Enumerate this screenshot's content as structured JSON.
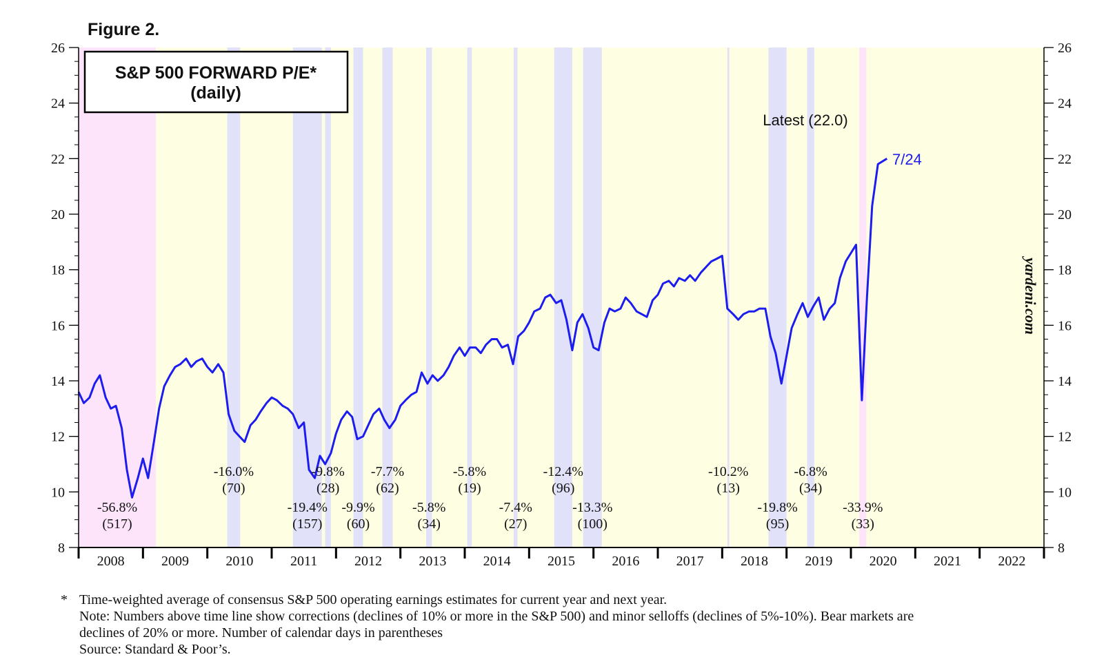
{
  "figure_label": "Figure 2.",
  "chart_data": {
    "type": "line",
    "title": "S&P 500 FORWARD P/E*",
    "subtitle": "(daily)",
    "watermark": "yardeni.com",
    "latest_label": "Latest (22.0)",
    "date_label": "7/24",
    "xlim": [
      2008,
      2023
    ],
    "xticks": [
      {
        "value": 2008.5,
        "label": "2008"
      },
      {
        "value": 2009.5,
        "label": "2009"
      },
      {
        "value": 2010.5,
        "label": "2010"
      },
      {
        "value": 2011.5,
        "label": "2011"
      },
      {
        "value": 2012.5,
        "label": "2012"
      },
      {
        "value": 2013.5,
        "label": "2013"
      },
      {
        "value": 2014.5,
        "label": "2014"
      },
      {
        "value": 2015.5,
        "label": "2015"
      },
      {
        "value": 2016.5,
        "label": "2016"
      },
      {
        "value": 2017.5,
        "label": "2017"
      },
      {
        "value": 2018.5,
        "label": "2018"
      },
      {
        "value": 2019.5,
        "label": "2019"
      },
      {
        "value": 2020.5,
        "label": "2020"
      },
      {
        "value": 2021.5,
        "label": "2021"
      },
      {
        "value": 2022.5,
        "label": "2022"
      }
    ],
    "ylim": [
      8,
      26
    ],
    "yticks": [
      8,
      10,
      12,
      14,
      16,
      18,
      20,
      22,
      24,
      26
    ],
    "y2lim": [
      8,
      26
    ],
    "y2ticks": [
      8,
      10,
      12,
      14,
      16,
      18,
      20,
      22,
      24,
      26
    ],
    "background_color": "#fefee2",
    "periods": [
      {
        "start": 2008.0,
        "end": 2009.2,
        "color": "#fde4fa",
        "label": "-56.8%",
        "days": "(517)"
      },
      {
        "start": 2010.31,
        "end": 2010.51,
        "color": "#e1e1fa",
        "label": "-16.0%",
        "days": "(70)"
      },
      {
        "start": 2011.33,
        "end": 2011.78,
        "color": "#e1e1fa",
        "label": "-19.4%",
        "days": "(157)"
      },
      {
        "start": 2011.83,
        "end": 2011.92,
        "color": "#e1e1fa",
        "label": "-9.8%",
        "days": "(28)"
      },
      {
        "start": 2012.27,
        "end": 2012.42,
        "color": "#e1e1fa",
        "label": "-9.9%",
        "days": "(60)"
      },
      {
        "start": 2012.72,
        "end": 2012.88,
        "color": "#e1e1fa",
        "label": "-7.7%",
        "days": "(62)"
      },
      {
        "start": 2013.4,
        "end": 2013.49,
        "color": "#e1e1fa",
        "label": "-5.8%",
        "days": "(34)"
      },
      {
        "start": 2014.04,
        "end": 2014.11,
        "color": "#e1e1fa",
        "label": "-5.8%",
        "days": "(19)"
      },
      {
        "start": 2014.76,
        "end": 2014.82,
        "color": "#e1e1fa",
        "label": "-7.4%",
        "days": "(27)"
      },
      {
        "start": 2015.39,
        "end": 2015.67,
        "color": "#e1e1fa",
        "label": "-12.4%",
        "days": "(96)"
      },
      {
        "start": 2015.84,
        "end": 2016.13,
        "color": "#e1e1fa",
        "label": "-13.3%",
        "days": "(100)"
      },
      {
        "start": 2018.08,
        "end": 2018.11,
        "color": "#e1e1fa",
        "label": "-10.2%",
        "days": "(13)"
      },
      {
        "start": 2018.72,
        "end": 2019.0,
        "color": "#e1e1fa",
        "label": "-19.8%",
        "days": "(95)"
      },
      {
        "start": 2019.32,
        "end": 2019.43,
        "color": "#e1e1fa",
        "label": "-6.8%",
        "days": "(34)"
      },
      {
        "start": 2020.13,
        "end": 2020.24,
        "color": "#fde4fa",
        "label": "-33.9%",
        "days": "(33)"
      }
    ],
    "series": [
      {
        "name": "S&P 500 FORWARD P/E",
        "color": "#1c1cee",
        "x": [
          2008.0,
          2008.08,
          2008.17,
          2008.25,
          2008.33,
          2008.42,
          2008.5,
          2008.58,
          2008.67,
          2008.75,
          2008.83,
          2008.92,
          2009.0,
          2009.08,
          2009.17,
          2009.25,
          2009.33,
          2009.42,
          2009.5,
          2009.58,
          2009.67,
          2009.75,
          2009.83,
          2009.92,
          2010.0,
          2010.08,
          2010.17,
          2010.25,
          2010.33,
          2010.42,
          2010.5,
          2010.58,
          2010.67,
          2010.75,
          2010.83,
          2010.92,
          2011.0,
          2011.08,
          2011.17,
          2011.25,
          2011.33,
          2011.42,
          2011.5,
          2011.58,
          2011.67,
          2011.75,
          2011.83,
          2011.92,
          2012.0,
          2012.08,
          2012.17,
          2012.25,
          2012.33,
          2012.42,
          2012.5,
          2012.58,
          2012.67,
          2012.75,
          2012.83,
          2012.92,
          2013.0,
          2013.08,
          2013.17,
          2013.25,
          2013.33,
          2013.42,
          2013.5,
          2013.58,
          2013.67,
          2013.75,
          2013.83,
          2013.92,
          2014.0,
          2014.08,
          2014.17,
          2014.25,
          2014.33,
          2014.42,
          2014.5,
          2014.58,
          2014.67,
          2014.75,
          2014.83,
          2014.92,
          2015.0,
          2015.08,
          2015.17,
          2015.25,
          2015.33,
          2015.42,
          2015.5,
          2015.58,
          2015.67,
          2015.75,
          2015.83,
          2015.92,
          2016.0,
          2016.08,
          2016.17,
          2016.25,
          2016.33,
          2016.42,
          2016.5,
          2016.58,
          2016.67,
          2016.75,
          2016.83,
          2016.92,
          2017.0,
          2017.08,
          2017.17,
          2017.25,
          2017.33,
          2017.42,
          2017.5,
          2017.58,
          2017.67,
          2017.75,
          2017.83,
          2017.92,
          2018.0,
          2018.08,
          2018.17,
          2018.25,
          2018.33,
          2018.42,
          2018.5,
          2018.58,
          2018.67,
          2018.75,
          2018.83,
          2018.92,
          2019.0,
          2019.08,
          2019.17,
          2019.25,
          2019.33,
          2019.42,
          2019.5,
          2019.58,
          2019.67,
          2019.75,
          2019.83,
          2019.92,
          2020.0,
          2020.08,
          2020.17,
          2020.25,
          2020.33,
          2020.42,
          2020.56
        ],
        "values": [
          13.6,
          13.2,
          13.4,
          13.9,
          14.2,
          13.4,
          13.0,
          13.1,
          12.3,
          10.8,
          9.8,
          10.5,
          11.2,
          10.5,
          11.8,
          13.0,
          13.8,
          14.2,
          14.5,
          14.6,
          14.8,
          14.5,
          14.7,
          14.8,
          14.5,
          14.3,
          14.6,
          14.3,
          12.8,
          12.2,
          12.0,
          11.8,
          12.4,
          12.6,
          12.9,
          13.2,
          13.4,
          13.3,
          13.1,
          13.0,
          12.8,
          12.3,
          12.5,
          10.8,
          10.5,
          11.3,
          11.0,
          11.4,
          12.1,
          12.6,
          12.9,
          12.7,
          11.9,
          12.0,
          12.4,
          12.8,
          13.0,
          12.6,
          12.3,
          12.6,
          13.1,
          13.3,
          13.5,
          13.6,
          14.3,
          13.9,
          14.2,
          14.0,
          14.2,
          14.5,
          14.9,
          15.2,
          14.9,
          15.2,
          15.2,
          15.0,
          15.3,
          15.5,
          15.5,
          15.2,
          15.3,
          14.6,
          15.6,
          15.8,
          16.1,
          16.5,
          16.6,
          17.0,
          17.1,
          16.8,
          16.9,
          16.2,
          15.1,
          16.1,
          16.4,
          15.9,
          15.2,
          15.1,
          16.1,
          16.6,
          16.5,
          16.6,
          17.0,
          16.8,
          16.5,
          16.4,
          16.3,
          16.9,
          17.1,
          17.5,
          17.6,
          17.4,
          17.7,
          17.6,
          17.8,
          17.6,
          17.9,
          18.1,
          18.3,
          18.4,
          18.5,
          16.6,
          16.4,
          16.2,
          16.4,
          16.5,
          16.5,
          16.6,
          16.6,
          15.6,
          15.0,
          13.9,
          14.9,
          15.9,
          16.4,
          16.8,
          16.3,
          16.7,
          17.0,
          16.2,
          16.6,
          16.8,
          17.7,
          18.3,
          18.6,
          18.9,
          13.3,
          17.0,
          20.3,
          21.8,
          22.0
        ]
      }
    ],
    "footnotes": [
      "*",
      "Time-weighted average of consensus S&P 500 operating earnings estimates for current year and next year.",
      "Note: Numbers above time line show corrections (declines of 10% or more in the S&P 500) and minor selloffs (declines of 5%-10%). Bear markets are",
      "declines of 20% or more. Number of calendar days in parentheses",
      "Source: Standard & Poor’s."
    ]
  }
}
